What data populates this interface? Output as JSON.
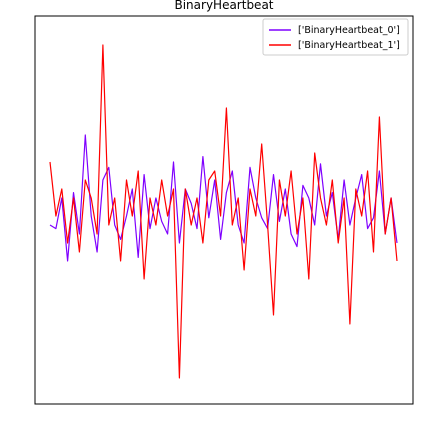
{
  "chart_data": {
    "type": "line",
    "title": "BinaryHeartbeat",
    "xlabel": "",
    "ylabel": "",
    "grid": false,
    "legend_position": "top-right",
    "x_points": 60,
    "xlim": [
      0,
      59
    ],
    "ylim": [
      -1.0,
      1.0
    ],
    "axes_visible": false,
    "series": [
      {
        "name": "['BinaryHeartbeat_0']",
        "color": "#7f00ff",
        "values": [
          -0.1,
          -0.12,
          0.05,
          -0.3,
          0.08,
          -0.15,
          0.4,
          -0.05,
          -0.25,
          0.15,
          0.22,
          -0.1,
          -0.18,
          -0.05,
          0.1,
          -0.28,
          0.18,
          -0.12,
          0.05,
          -0.08,
          -0.15,
          0.25,
          -0.2,
          0.1,
          0.02,
          -0.12,
          0.28,
          -0.06,
          0.15,
          -0.18,
          0.08,
          0.2,
          -0.1,
          -0.2,
          0.22,
          0.05,
          -0.06,
          -0.12,
          0.18,
          -0.08,
          0.1,
          -0.15,
          -0.22,
          0.12,
          0.05,
          -0.1,
          0.24,
          -0.05,
          0.08,
          -0.18,
          0.15,
          -0.1,
          0.05,
          0.18,
          -0.12,
          -0.06,
          0.2,
          -0.15,
          0.05,
          -0.2
        ]
      },
      {
        "name": "['BinaryHeartbeat_1']",
        "color": "#ff0000",
        "values": [
          0.25,
          -0.05,
          0.1,
          -0.2,
          0.05,
          -0.25,
          0.15,
          0.05,
          -0.15,
          0.9,
          -0.1,
          0.05,
          -0.3,
          0.15,
          -0.05,
          0.2,
          -0.4,
          0.05,
          -0.1,
          0.15,
          -0.05,
          0.1,
          -0.95,
          0.1,
          -0.1,
          0.05,
          -0.2,
          0.15,
          0.2,
          -0.05,
          0.55,
          -0.1,
          0.05,
          -0.35,
          0.1,
          -0.05,
          0.35,
          -0.1,
          -0.6,
          0.15,
          -0.05,
          0.2,
          -0.15,
          0.05,
          -0.4,
          0.3,
          0.05,
          -0.1,
          0.15,
          -0.2,
          0.05,
          -0.65,
          0.1,
          -0.05,
          0.2,
          -0.25,
          0.5,
          -0.15,
          0.05,
          -0.3
        ]
      }
    ]
  }
}
